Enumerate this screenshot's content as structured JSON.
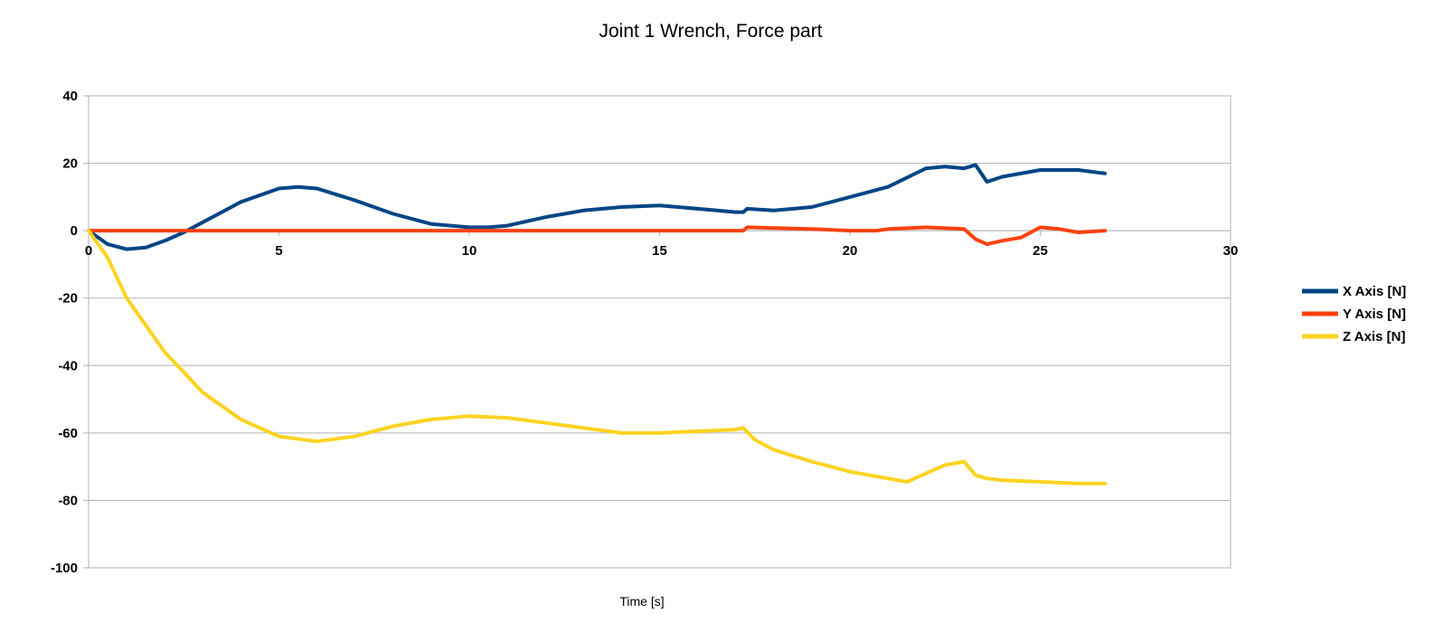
{
  "chart_data": {
    "type": "line",
    "title": "Joint 1 Wrench, Force part",
    "xlabel": "Time [s]",
    "ylabel": "",
    "xlim": [
      0,
      30
    ],
    "ylim": [
      -100,
      40
    ],
    "xticks": [
      "0",
      "5",
      "10",
      "15",
      "20",
      "25",
      "30"
    ],
    "yticks": [
      "40",
      "20",
      "0",
      "-20",
      "-40",
      "-60",
      "-80",
      "-100"
    ],
    "grid": true,
    "legend_position": "right",
    "series": [
      {
        "name": "X Axis [N]",
        "color": "#004586",
        "x": [
          0,
          0.5,
          1,
          1.5,
          2,
          2.5,
          3,
          4,
          5,
          5.5,
          6,
          7,
          8,
          9,
          10,
          10.5,
          11,
          12,
          13,
          14,
          15,
          16,
          17,
          17.2,
          17.3,
          18,
          19,
          20,
          21,
          22,
          22.5,
          23,
          23.3,
          23.6,
          24,
          25,
          26,
          26.7
        ],
        "y": [
          0,
          -4,
          -5.5,
          -5,
          -3,
          -0.5,
          2.5,
          8.5,
          12.5,
          13,
          12.5,
          9,
          5,
          2,
          1,
          1,
          1.5,
          4,
          6,
          7,
          7.5,
          6.5,
          5.5,
          5.5,
          6.5,
          6,
          7,
          10,
          13,
          18.5,
          19,
          18.5,
          19.5,
          14.5,
          16,
          18,
          18,
          17
        ]
      },
      {
        "name": "Y Axis [N]",
        "color": "#ff420e",
        "x": [
          0,
          5,
          10,
          15,
          17.2,
          17.3,
          19,
          20,
          20.7,
          21,
          22,
          23,
          23.3,
          23.6,
          24,
          24.5,
          25,
          25.5,
          26,
          26.7
        ],
        "y": [
          0,
          0,
          0,
          0,
          0,
          1,
          0.5,
          0,
          0,
          0.5,
          1,
          0.5,
          -2.5,
          -4,
          -3,
          -2,
          1,
          0.5,
          -0.5,
          0
        ]
      },
      {
        "name": "Z Axis [N]",
        "color": "#ffd320",
        "x": [
          0,
          0.5,
          1,
          2,
          3,
          4,
          5,
          6,
          7,
          8,
          9,
          10,
          11,
          12,
          13,
          14,
          15,
          16,
          17,
          17.2,
          17.5,
          18,
          19,
          20,
          21,
          21.5,
          22,
          22.5,
          23,
          23.3,
          23.6,
          24,
          25,
          26,
          26.7
        ],
        "y": [
          0,
          -8,
          -20,
          -36,
          -48,
          -56,
          -61,
          -62.5,
          -61,
          -58,
          -56,
          -55,
          -55.5,
          -57,
          -58.5,
          -60,
          -60,
          -59.5,
          -59,
          -58.5,
          -62,
          -65,
          -68.5,
          -71.5,
          -73.5,
          -74.5,
          -72,
          -69.5,
          -68.5,
          -72.5,
          -73.5,
          -74,
          -74.5,
          -75,
          -75
        ]
      }
    ]
  }
}
